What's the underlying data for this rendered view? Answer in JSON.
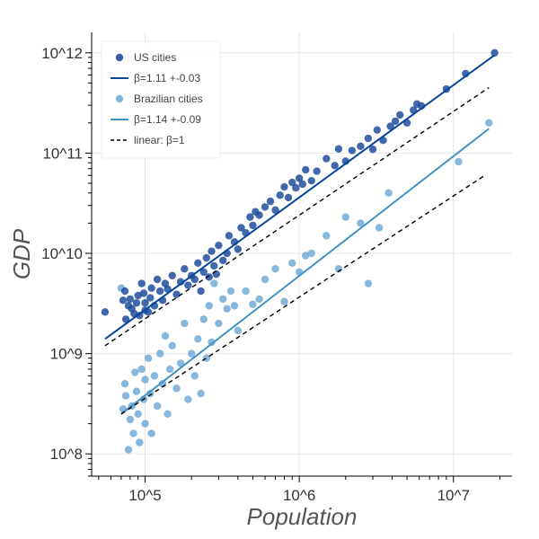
{
  "chart_data": {
    "type": "scatter",
    "x_scale": "log",
    "y_scale": "log",
    "xlabel": "Population",
    "ylabel": "GDP",
    "xlim": [
      45000,
      24000000
    ],
    "ylim": [
      60000000,
      1600000000000
    ],
    "grid": true,
    "legend_position": "top-left",
    "x_ticks": [
      {
        "value": 100000,
        "label": "10^5"
      },
      {
        "value": 1000000,
        "label": "10^6"
      },
      {
        "value": 10000000,
        "label": "10^7"
      }
    ],
    "y_ticks": [
      {
        "value": 100000000,
        "label": "10^8"
      },
      {
        "value": 1000000000,
        "label": "10^9"
      },
      {
        "value": 10000000000,
        "label": "10^10"
      },
      {
        "value": 100000000000,
        "label": "10^11"
      },
      {
        "value": 1000000000000,
        "label": "10^12"
      }
    ],
    "legend": [
      {
        "label": "US cities",
        "kind": "marker",
        "color": "#1f4e9c"
      },
      {
        "label": "β=1.11 +-0.03",
        "kind": "line",
        "color": "#08469b"
      },
      {
        "label": "Brazilian cities",
        "kind": "marker",
        "color": "#73aad6"
      },
      {
        "label": "β=1.14 +-0.09",
        "kind": "line",
        "color": "#4292c6"
      },
      {
        "label": "linear: β=1",
        "kind": "dashed",
        "color": "#000000"
      }
    ],
    "series": [
      {
        "name": "US cities",
        "color": "#1f4e9c",
        "points": [
          [
            55000,
            2600000000.0
          ],
          [
            72000,
            3400000000.0
          ],
          [
            74000,
            4200000000.0
          ],
          [
            75000,
            2200000000.0
          ],
          [
            78000,
            3000000000.0
          ],
          [
            80000,
            3500000000.0
          ],
          [
            82000,
            2800000000.0
          ],
          [
            85000,
            2500000000.0
          ],
          [
            88000,
            3200000000.0
          ],
          [
            90000,
            3800000000.0
          ],
          [
            92000,
            2400000000.0
          ],
          [
            95000,
            5000000000.0
          ],
          [
            98000,
            4000000000.0
          ],
          [
            100000,
            3200000000.0
          ],
          [
            100000,
            2700000000.0
          ],
          [
            105000,
            2600000000.0
          ],
          [
            108000,
            3600000000.0
          ],
          [
            110000,
            4500000000.0
          ],
          [
            115000,
            3000000000.0
          ],
          [
            120000,
            5500000000.0
          ],
          [
            125000,
            4200000000.0
          ],
          [
            130000,
            3400000000.0
          ],
          [
            135000,
            5000000000.0
          ],
          [
            140000,
            4400000000.0
          ],
          [
            150000,
            6000000000.0
          ],
          [
            160000,
            3900000000.0
          ],
          [
            170000,
            5200000000.0
          ],
          [
            180000,
            7000000000.0
          ],
          [
            190000,
            4800000000.0
          ],
          [
            200000,
            6000000000.0
          ],
          [
            210000,
            5500000000.0
          ],
          [
            220000,
            8000000000.0
          ],
          [
            230000,
            4200000000.0
          ],
          [
            240000,
            6500000000.0
          ],
          [
            250000,
            9000000000.0
          ],
          [
            260000,
            5800000000.0
          ],
          [
            270000,
            10500000000.0
          ],
          [
            280000,
            7500000000.0
          ],
          [
            290000,
            6200000000.0
          ],
          [
            300000,
            12000000000.0
          ],
          [
            320000,
            8500000000.0
          ],
          [
            340000,
            10000000000.0
          ],
          [
            350000,
            15000000000.0
          ],
          [
            380000,
            13000000000.0
          ],
          [
            400000,
            11000000000.0
          ],
          [
            420000,
            18000000000.0
          ],
          [
            450000,
            16000000000.0
          ],
          [
            480000,
            23000000000.0
          ],
          [
            500000,
            19000000000.0
          ],
          [
            520000,
            26000000000.0
          ],
          [
            550000,
            24000000000.0
          ],
          [
            600000,
            29000000000.0
          ],
          [
            650000,
            33000000000.0
          ],
          [
            700000,
            27000000000.0
          ],
          [
            750000,
            38000000000.0
          ],
          [
            800000,
            46000000000.0
          ],
          [
            850000,
            36000000000.0
          ],
          [
            900000,
            51000000000.0
          ],
          [
            950000,
            45000000000.0
          ],
          [
            1000000,
            56000000000.0
          ],
          [
            1050000,
            49000000000.0
          ],
          [
            1100000,
            68000000000.0
          ],
          [
            1200000,
            53000000000.0
          ],
          [
            1300000,
            66000000000.0
          ],
          [
            1500000,
            88000000000.0
          ],
          [
            1700000,
            75000000000.0
          ],
          [
            1800000,
            110000000000.0
          ],
          [
            2000000,
            83000000000.0
          ],
          [
            2200000,
            106000000000.0
          ],
          [
            2500000,
            117000000000.0
          ],
          [
            2800000,
            140000000000.0
          ],
          [
            3000000,
            109000000000.0
          ],
          [
            3200000,
            170000000000.0
          ],
          [
            3500000,
            134000000000.0
          ],
          [
            3900000,
            185000000000.0
          ],
          [
            4200000,
            208000000000.0
          ],
          [
            4500000,
            240000000000.0
          ],
          [
            5000000,
            200000000000.0
          ],
          [
            5500000,
            268000000000.0
          ],
          [
            5800000,
            308000000000.0
          ],
          [
            6200000,
            295000000000.0
          ],
          [
            9000000,
            435000000000.0
          ],
          [
            12000000,
            620000000000.0
          ],
          [
            18500000,
            1000000000000.0
          ]
        ]
      },
      {
        "name": "Brazilian cities",
        "color": "#73aad6",
        "points": [
          [
            70000,
            4500000000.0
          ],
          [
            72000,
            280000000.0
          ],
          [
            74000,
            500000000.0
          ],
          [
            75000,
            380000000.0
          ],
          [
            78000,
            110000000.0
          ],
          [
            80000,
            220000000.0
          ],
          [
            82000,
            300000000.0
          ],
          [
            84000,
            160000000.0
          ],
          [
            86000,
            650000000.0
          ],
          [
            88000,
            420000000.0
          ],
          [
            90000,
            250000000.0
          ],
          [
            92000,
            130000000.0
          ],
          [
            95000,
            700000000.0
          ],
          [
            98000,
            350000000.0
          ],
          [
            100000,
            550000000.0
          ],
          [
            100000,
            200000000.0
          ],
          [
            105000,
            900000000.0
          ],
          [
            108000,
            400000000.0
          ],
          [
            110000,
            160000000.0
          ],
          [
            115000,
            600000000.0
          ],
          [
            120000,
            300000000.0
          ],
          [
            125000,
            1000000000.0
          ],
          [
            130000,
            500000000.0
          ],
          [
            135000,
            1500000000.0
          ],
          [
            140000,
            250000000.0
          ],
          [
            145000,
            700000000.0
          ],
          [
            150000,
            1200000000.0
          ],
          [
            160000,
            450000000.0
          ],
          [
            170000,
            800000000.0
          ],
          [
            180000,
            2000000000.0
          ],
          [
            190000,
            350000000.0
          ],
          [
            200000,
            1000000000.0
          ],
          [
            210000,
            600000000.0
          ],
          [
            220000,
            1400000000.0
          ],
          [
            230000,
            400000000.0
          ],
          [
            240000,
            2200000000.0
          ],
          [
            250000,
            900000000.0
          ],
          [
            260000,
            3000000000.0
          ],
          [
            270000,
            1300000000.0
          ],
          [
            280000,
            5000000000.0
          ],
          [
            300000,
            2000000000.0
          ],
          [
            320000,
            3500000000.0
          ],
          [
            340000,
            2800000000.0
          ],
          [
            360000,
            4200000000.0
          ],
          [
            380000,
            3000000000.0
          ],
          [
            400000,
            1700000000.0
          ],
          [
            450000,
            4200000000.0
          ],
          [
            500000,
            3100000000.0
          ],
          [
            550000,
            3500000000.0
          ],
          [
            600000,
            5500000000.0
          ],
          [
            700000,
            7000000000.0
          ],
          [
            800000,
            3300000000.0
          ],
          [
            900000,
            8000000000.0
          ],
          [
            1000000,
            6500000000.0
          ],
          [
            1100000,
            9500000000.0
          ],
          [
            1200000,
            10000000000.0
          ],
          [
            1500000,
            15000000000.0
          ],
          [
            1800000,
            7000000000.0
          ],
          [
            2000000,
            23000000000.0
          ],
          [
            2500000,
            20000000000.0
          ],
          [
            2800000,
            5000000000.0
          ],
          [
            3300000,
            18000000000.0
          ],
          [
            3800000,
            40000000000.0
          ],
          [
            10800000,
            82000000000.0
          ],
          [
            17000000,
            200000000000.0
          ]
        ]
      }
    ],
    "fits": [
      {
        "name": "β=1.11 +-0.03",
        "color": "#08469b",
        "style": "solid",
        "x": [
          55000,
          18500000
        ],
        "y": [
          1400000000.0,
          950000000000.0
        ]
      },
      {
        "name": "β=1.14 +-0.09",
        "color": "#4292c6",
        "style": "solid",
        "x": [
          70000,
          17000000
        ],
        "y": [
          250000000.0,
          175000000000.0
        ]
      },
      {
        "name": "linear: β=1",
        "color": "#000000",
        "style": "dashed",
        "x": [
          55000,
          17000000
        ],
        "y": [
          1200000000.0,
          450000000000.0
        ]
      },
      {
        "name": "linear: β=1",
        "color": "#000000",
        "style": "dashed",
        "x": [
          70000,
          16000000
        ],
        "y": [
          250000000.0,
          60000000000.0
        ]
      }
    ]
  }
}
